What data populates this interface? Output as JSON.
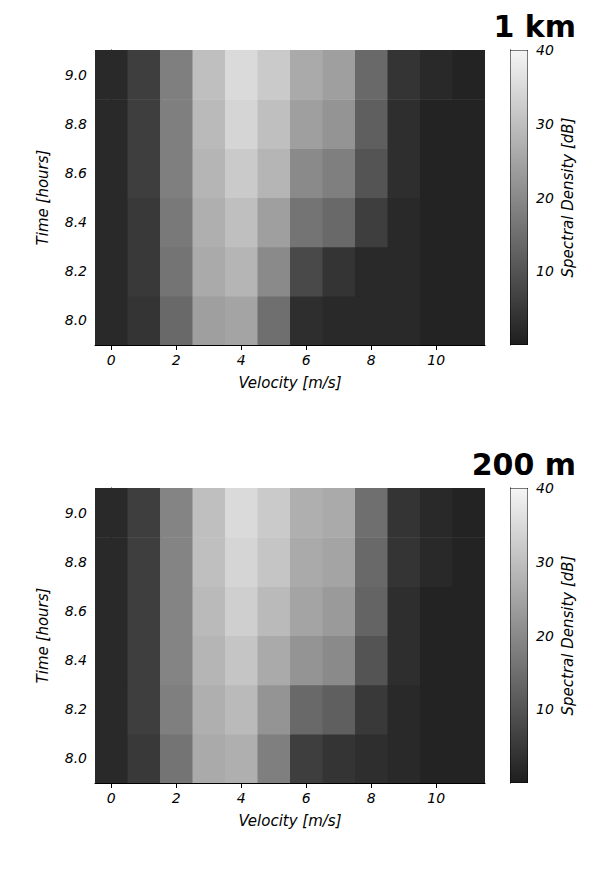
{
  "chart_data": [
    {
      "type": "heatmap",
      "title": "1 km",
      "x_label": "Velocity [m/s]",
      "y_label": "Time [hours]",
      "colorbar_label": "Spectral Density [dB]",
      "x": [
        0,
        1,
        2,
        3,
        4,
        5,
        6,
        7,
        8,
        9,
        10,
        11
      ],
      "y": [
        8.0,
        8.2,
        8.4,
        8.6,
        8.8,
        9.0
      ],
      "cells": [
        [
          2,
          4,
          14,
          24,
          25,
          15,
          3,
          2,
          2,
          2,
          1,
          1
        ],
        [
          2,
          5,
          16,
          26,
          28,
          20,
          8,
          4,
          2,
          2,
          1,
          1
        ],
        [
          2,
          5,
          17,
          27,
          30,
          24,
          16,
          14,
          6,
          2,
          1,
          1
        ],
        [
          2,
          6,
          18,
          28,
          32,
          28,
          20,
          18,
          10,
          3,
          1,
          1
        ],
        [
          2,
          6,
          18,
          29,
          34,
          30,
          24,
          22,
          12,
          3,
          1,
          1
        ],
        [
          2,
          6,
          18,
          30,
          35,
          32,
          26,
          24,
          14,
          4,
          2,
          1
        ]
      ],
      "xlim": [
        -0.5,
        11.5
      ],
      "xticks": [
        0,
        2,
        4,
        6,
        8,
        10
      ],
      "ylim": [
        7.9,
        9.1
      ],
      "yticks": [
        {
          "value": 8.0,
          "label": "8.0"
        },
        {
          "value": 8.2,
          "label": "8.2"
        },
        {
          "value": 8.4,
          "label": "8.4"
        },
        {
          "value": 8.6,
          "label": "8.6"
        },
        {
          "value": 8.8,
          "label": "8.8"
        },
        {
          "value": 9.0,
          "label": "9.0"
        }
      ],
      "colorbar_range": [
        0,
        40
      ],
      "colorbar_ticks": [
        10,
        20,
        30,
        40
      ]
    },
    {
      "type": "heatmap",
      "title": "200 m",
      "x_label": "Velocity [m/s]",
      "y_label": "Time [hours]",
      "colorbar_label": "Spectral Density [dB]",
      "x": [
        0,
        1,
        2,
        3,
        4,
        5,
        6,
        7,
        8,
        9,
        10,
        11
      ],
      "y": [
        8.0,
        8.2,
        8.4,
        8.6,
        8.8,
        9.0
      ],
      "cells": [
        [
          2,
          5,
          16,
          26,
          27,
          18,
          6,
          4,
          3,
          2,
          1,
          1
        ],
        [
          2,
          6,
          18,
          27,
          29,
          22,
          14,
          12,
          5,
          2,
          1,
          1
        ],
        [
          2,
          6,
          19,
          28,
          31,
          26,
          22,
          20,
          10,
          3,
          1,
          1
        ],
        [
          2,
          6,
          19,
          29,
          33,
          29,
          25,
          23,
          13,
          3,
          1,
          1
        ],
        [
          2,
          6,
          19,
          30,
          34,
          31,
          26,
          25,
          14,
          4,
          2,
          1
        ],
        [
          2,
          6,
          19,
          30,
          35,
          32,
          27,
          26,
          15,
          4,
          2,
          1
        ]
      ],
      "xlim": [
        -0.5,
        11.5
      ],
      "xticks": [
        0,
        2,
        4,
        6,
        8,
        10
      ],
      "ylim": [
        7.9,
        9.1
      ],
      "yticks": [
        {
          "value": 8.0,
          "label": "8.0"
        },
        {
          "value": 8.2,
          "label": "8.2"
        },
        {
          "value": 8.4,
          "label": "8.4"
        },
        {
          "value": 8.6,
          "label": "8.6"
        },
        {
          "value": 8.8,
          "label": "8.8"
        },
        {
          "value": 9.0,
          "label": "9.0"
        }
      ],
      "colorbar_range": [
        0,
        40
      ],
      "colorbar_ticks": [
        10,
        20,
        30,
        40
      ]
    }
  ]
}
